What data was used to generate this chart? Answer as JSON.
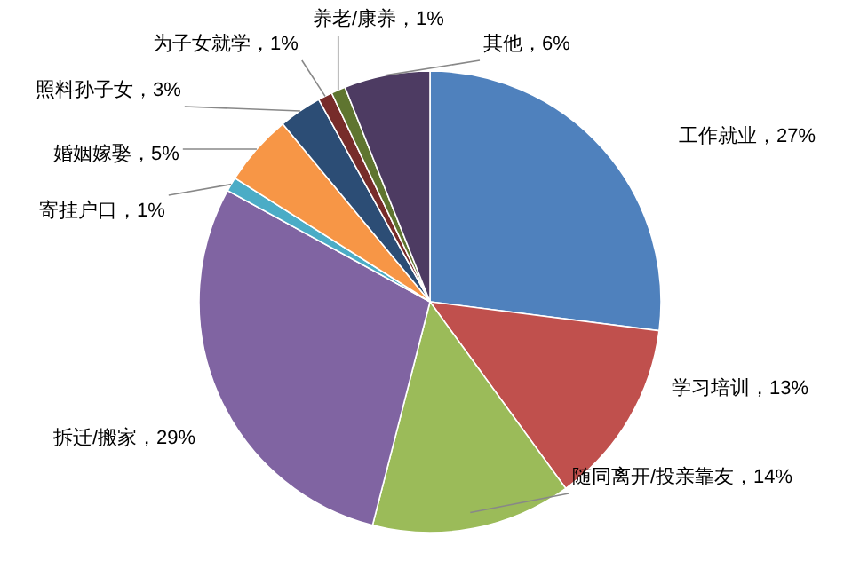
{
  "chart_data": {
    "type": "pie",
    "categories": [
      "工作就业",
      "学习培训",
      "随同离开/投亲靠友",
      "拆迁/搬家",
      "寄挂户口",
      "婚姻嫁娶",
      "照料孙子女",
      "为子女就学",
      "养老/康养",
      "其他"
    ],
    "values": [
      27,
      13,
      14,
      29,
      1,
      5,
      3,
      1,
      1,
      6
    ],
    "value_labels": [
      "27%",
      "13%",
      "14%",
      "29%",
      "1%",
      "5%",
      "3%",
      "1%",
      "1%",
      "6%"
    ],
    "colors": [
      "#4f81bd",
      "#c0504d",
      "#9bbb59",
      "#8064a2",
      "#4bacc6",
      "#f79646",
      "#2c4d75",
      "#772c2a",
      "#5f7530",
      "#4d3b62"
    ]
  }
}
